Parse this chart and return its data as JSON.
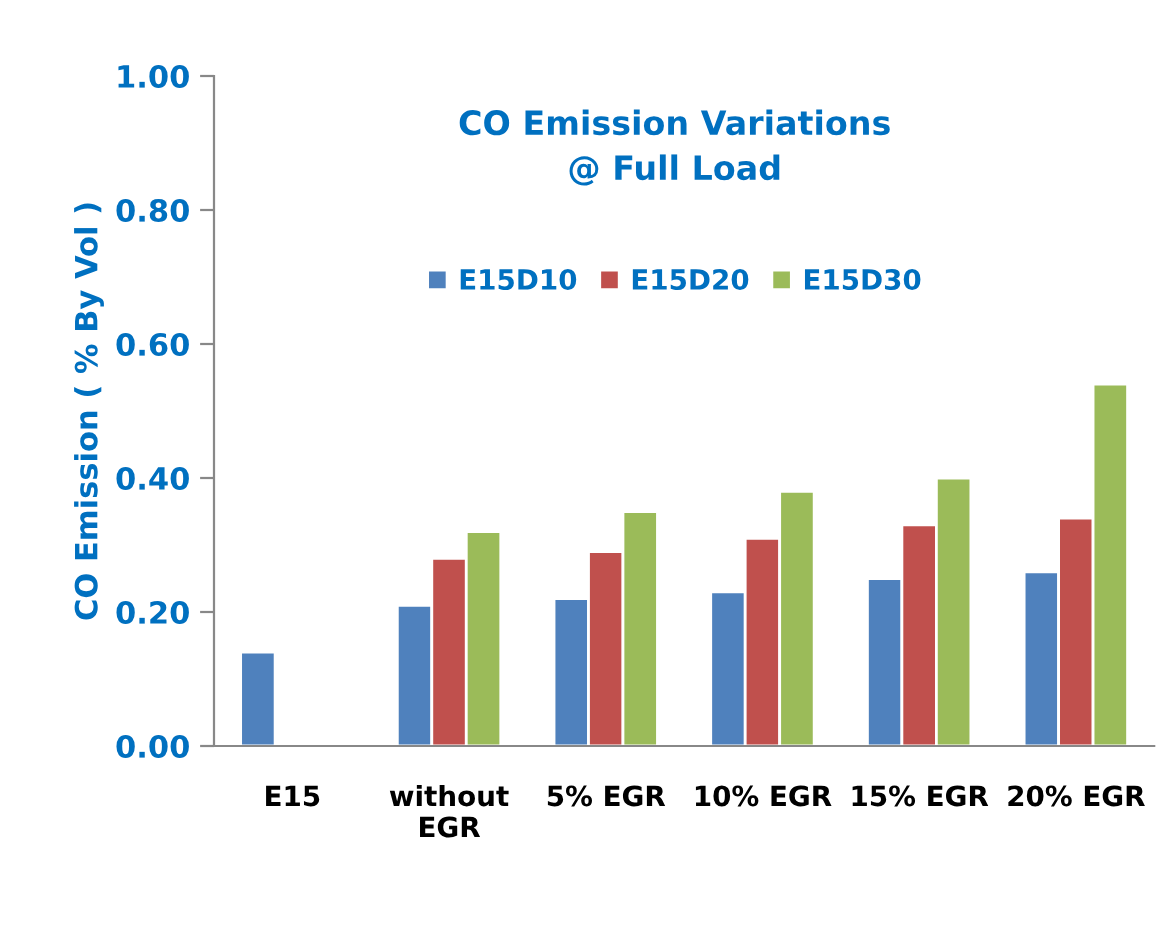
{
  "chart_data": {
    "type": "bar",
    "title": "CO Emission Variations\n@ Full Load",
    "ylabel": "CO Emission ( % By Vol )",
    "categories": [
      "E15",
      "without EGR",
      "5% EGR",
      "10% EGR",
      "15% EGR",
      "20% EGR"
    ],
    "series": [
      {
        "name": "E15D10",
        "color": "#4f81bd",
        "values": [
          0.14,
          0.21,
          0.22,
          0.23,
          0.25,
          0.26
        ]
      },
      {
        "name": "E15D20",
        "color": "#c0504d",
        "values": [
          null,
          0.28,
          0.29,
          0.31,
          0.33,
          0.34
        ]
      },
      {
        "name": "E15D30",
        "color": "#9bbb59",
        "values": [
          null,
          0.32,
          0.35,
          0.38,
          0.4,
          0.54
        ]
      }
    ],
    "ylim": [
      0,
      1.0
    ],
    "yticks": [
      {
        "value": 0,
        "label": "0.00"
      },
      {
        "value": 0.2,
        "label": "0.20"
      },
      {
        "value": 0.4,
        "label": "0.40"
      },
      {
        "value": 0.6,
        "label": "0.60"
      },
      {
        "value": 0.8,
        "label": "0.80"
      },
      {
        "value": 1.0,
        "label": "1.00"
      }
    ],
    "grid": false,
    "legend": "top"
  }
}
